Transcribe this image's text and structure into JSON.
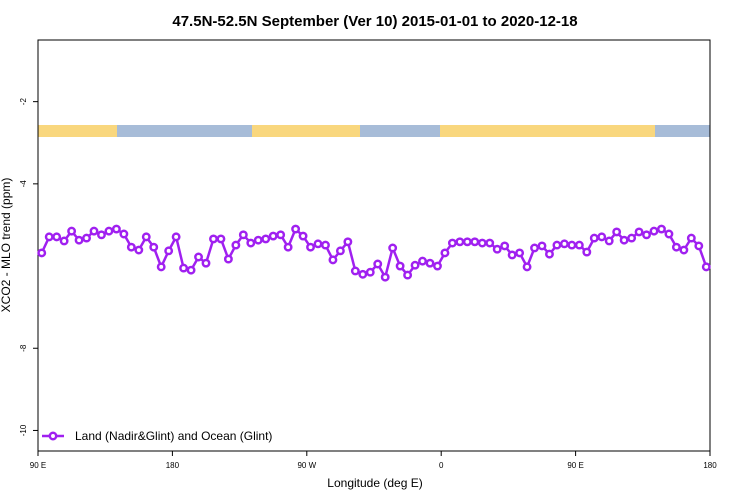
{
  "chart_data": {
    "type": "line",
    "title": "47.5N-52.5N September (Ver 10)   2015-01-01 to 2020-12-18",
    "x_label": "Longitude (deg E)",
    "y_label": "XCO2 - MLO trend (ppm)",
    "xlim": [
      90,
      540
    ],
    "xticks": [
      {
        "value": 90,
        "label": "90 E"
      },
      180,
      {
        "value": 270,
        "label": "90 W"
      },
      {
        "value": 360,
        "label": "0"
      },
      {
        "value": 450,
        "label": "90 E"
      },
      {
        "value": 540,
        "label": "180"
      }
    ],
    "ylim": [
      -10.5,
      -0.5
    ],
    "yticks": [
      -2,
      -4,
      -8,
      -10
    ],
    "legend": "bottom-left",
    "x": [
      92.5,
      97.5,
      102.5,
      107.5,
      112.5,
      117.5,
      122.5,
      127.5,
      132.5,
      137.5,
      142.5,
      147.5,
      152.5,
      157.5,
      162.5,
      167.5,
      172.5,
      177.5,
      182.5,
      187.5,
      192.5,
      197.5,
      202.5,
      207.5,
      212.5,
      217.5,
      222.5,
      227.5,
      232.5,
      237.5,
      242.5,
      247.5,
      252.5,
      257.5,
      262.5,
      267.5,
      272.5,
      277.5,
      282.5,
      287.5,
      292.5,
      297.5,
      302.5,
      307.5,
      312.5,
      317.5,
      322.5,
      327.5,
      332.5,
      337.5,
      342.5,
      347.5,
      352.5,
      357.5,
      362.5,
      367.5,
      372.5,
      377.5,
      382.5,
      387.5,
      392.5,
      397.5,
      402.5,
      407.5,
      412.5,
      417.5,
      422.5,
      427.5,
      432.5,
      437.5,
      442.5,
      447.5,
      452.5,
      457.5,
      462.5,
      467.5,
      472.5,
      477.5,
      482.5,
      487.5,
      492.5,
      497.5,
      502.5,
      507.5,
      512.5,
      517.5,
      522.5,
      527.5,
      532.5,
      537.5
    ],
    "series": [
      {
        "name": "Land (Nadir&Glint) and Ocean (Glint)",
        "color": "#a020f0",
        "values": [
          -5.68,
          -5.29,
          -5.29,
          -5.39,
          -5.15,
          -5.37,
          -5.32,
          -5.15,
          -5.24,
          -5.15,
          -5.1,
          -5.22,
          -5.54,
          -5.61,
          -5.29,
          -5.54,
          -6.02,
          -5.63,
          -5.29,
          -6.05,
          -6.1,
          -5.78,
          -5.93,
          -5.34,
          -5.34,
          -5.83,
          -5.49,
          -5.24,
          -5.44,
          -5.37,
          -5.34,
          -5.27,
          -5.24,
          -5.54,
          -5.1,
          -5.27,
          -5.54,
          -5.46,
          -5.49,
          -5.85,
          -5.63,
          -5.41,
          -6.12,
          -6.2,
          -6.15,
          -5.95,
          -6.27,
          -5.56,
          -6.0,
          -6.22,
          -5.98,
          -5.88,
          -5.93,
          -6.0,
          -5.68,
          -5.44,
          -5.41,
          -5.41,
          -5.41,
          -5.44,
          -5.44,
          -5.59,
          -5.51,
          -5.73,
          -5.68,
          -6.02,
          -5.56,
          -5.51,
          -5.71,
          -5.49,
          -5.46,
          -5.49,
          -5.49,
          -5.66,
          -5.32,
          -5.29,
          -5.39,
          -5.17,
          -5.37,
          -5.32,
          -5.17,
          -5.24,
          -5.15,
          -5.1,
          -5.22,
          -5.54,
          -5.61,
          -5.32,
          -5.51,
          -6.02
        ]
      }
    ]
  }
}
